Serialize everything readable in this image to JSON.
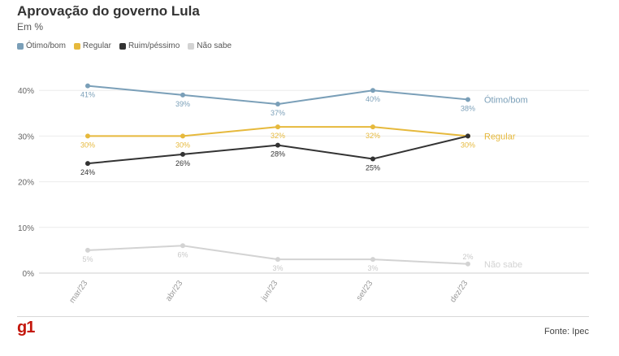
{
  "header": {
    "title": "Aprovação do governo Lula",
    "subtitle": "Em %"
  },
  "footer": {
    "logo": "g1",
    "source": "Fonte: Ipec"
  },
  "chart_data": {
    "type": "line",
    "title": "Aprovação do governo Lula",
    "subtitle": "Em %",
    "xlabel": "",
    "ylabel": "",
    "categories": [
      "mar/23",
      "abr/23",
      "jun/23",
      "set/23",
      "dez/23"
    ],
    "ylim": [
      0,
      45
    ],
    "yticks": [
      0,
      10,
      20,
      30,
      40
    ],
    "ytick_labels": [
      "0%",
      "10%",
      "20%",
      "30%",
      "40%"
    ],
    "grid": true,
    "legend_position": "top-left",
    "series": [
      {
        "name": "Ótimo/bom",
        "color": "#7a9fb8",
        "values": [
          41,
          39,
          37,
          40,
          38
        ],
        "labels": [
          "41%",
          "39%",
          "37%",
          "40%",
          "38%"
        ],
        "label_side": "below",
        "end_label": "Ótimo/bom"
      },
      {
        "name": "Regular",
        "color": "#e6b93c",
        "values": [
          30,
          30,
          32,
          32,
          30
        ],
        "labels": [
          "30%",
          "30%",
          "32%",
          "32%",
          "30%"
        ],
        "label_side": "below",
        "end_label": "Regular"
      },
      {
        "name": "Ruim/péssimo",
        "color": "#333333",
        "values": [
          24,
          26,
          28,
          25,
          30
        ],
        "labels": [
          "24%",
          "26%",
          "28%",
          "25%",
          ""
        ],
        "label_side": "below",
        "end_label": ""
      },
      {
        "name": "Não sabe",
        "color": "#d3d3d3",
        "values": [
          5,
          6,
          3,
          3,
          2
        ],
        "labels": [
          "5%",
          "6%",
          "3%",
          "3%",
          "2%"
        ],
        "label_side": "mixed",
        "end_label": "Não sabe"
      }
    ]
  }
}
